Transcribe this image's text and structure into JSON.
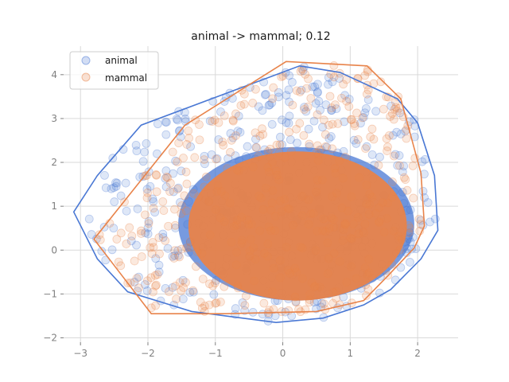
{
  "chart_data": {
    "type": "scatter",
    "title": "animal -> mammal; 0.12",
    "xlabel": "",
    "ylabel": "",
    "xlim": [
      -3.25,
      2.6
    ],
    "ylim": [
      -2.1,
      4.65
    ],
    "xticks": [
      -3,
      -2,
      -1,
      0,
      1,
      2
    ],
    "yticks": [
      -2,
      -1,
      0,
      1,
      2,
      3,
      4
    ],
    "grid": true,
    "legend_position": "top-left",
    "series": [
      {
        "name": "animal",
        "color": "#4a78d4",
        "hull": [
          [
            -3.1,
            0.87
          ],
          [
            -2.75,
            -0.2
          ],
          [
            -2.3,
            -0.95
          ],
          [
            -1.35,
            -1.4
          ],
          [
            -0.85,
            -1.5
          ],
          [
            -0.1,
            -1.65
          ],
          [
            0.6,
            -1.55
          ],
          [
            1.2,
            -1.25
          ],
          [
            1.6,
            -0.9
          ],
          [
            2.05,
            -0.2
          ],
          [
            2.3,
            0.45
          ],
          [
            2.25,
            1.7
          ],
          [
            2.0,
            2.9
          ],
          [
            1.7,
            3.45
          ],
          [
            0.85,
            4.05
          ],
          [
            0.25,
            4.2
          ],
          [
            -2.1,
            2.85
          ],
          [
            -2.75,
            1.7
          ]
        ],
        "core": {
          "cx": 0.2,
          "cy": 0.6,
          "rx": 1.75,
          "ry": 1.75
        }
      },
      {
        "name": "mammal",
        "color": "#e8834a",
        "hull": [
          [
            -2.8,
            0.25
          ],
          [
            -2.5,
            -0.35
          ],
          [
            -1.95,
            -1.45
          ],
          [
            -0.85,
            -1.45
          ],
          [
            0.5,
            -1.4
          ],
          [
            1.2,
            -1.15
          ],
          [
            1.55,
            -0.6
          ],
          [
            1.95,
            0.05
          ],
          [
            2.1,
            0.55
          ],
          [
            2.05,
            1.75
          ],
          [
            1.75,
            3.45
          ],
          [
            1.25,
            4.2
          ],
          [
            0.05,
            4.3
          ],
          [
            -1.45,
            2.85
          ]
        ],
        "core": {
          "cx": 0.22,
          "cy": 0.55,
          "rx": 1.62,
          "ry": 1.7
        }
      }
    ]
  }
}
